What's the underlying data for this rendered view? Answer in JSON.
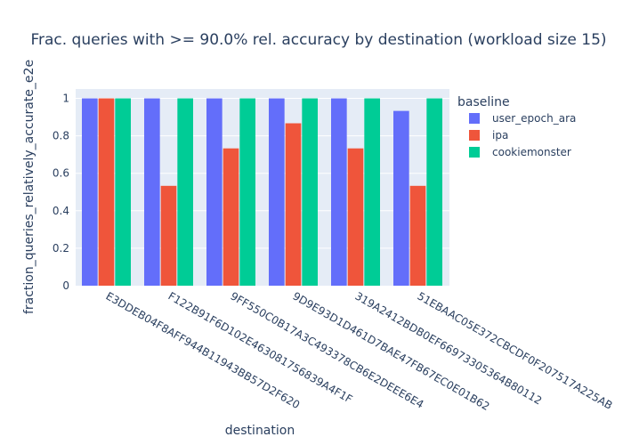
{
  "chart_data": {
    "type": "bar",
    "title": "Frac. queries with >= 90.0% rel. accuracy by destination (workload size 15)",
    "xlabel": "destination",
    "ylabel": "fraction_queries_relatively_accurate_e2e",
    "ylim": [
      0,
      1.05
    ],
    "yticks": [
      0,
      0.2,
      0.4,
      0.6,
      0.8,
      1
    ],
    "ytick_labels": [
      "0",
      "0.2",
      "0.4",
      "0.6",
      "0.8",
      "1"
    ],
    "grid": true,
    "legend_title": "baseline",
    "legend_position": "top-right",
    "categories": [
      "E3DDEB04F8AFF944B11943BB57D2F620",
      "F122B91F6D102E463081756839A4F1F",
      "9FF550C0B17A3C493378CB6E2DEEE6E4",
      "9D9E93D1D461D7BAE47FB67EC0E01B62",
      "319A2412BDB0EF66973305364B80112",
      "51EBAAC05E372CBCDF0F207517A225AB"
    ],
    "series": [
      {
        "name": "user_epoch_ara",
        "color": "#636efa",
        "values": [
          1,
          1,
          1,
          1,
          1,
          0.933
        ]
      },
      {
        "name": "ipa",
        "color": "#ef553b",
        "values": [
          1,
          0.533,
          0.733,
          0.867,
          0.733,
          0.533
        ]
      },
      {
        "name": "cookiemonster",
        "color": "#00cc96",
        "values": [
          1,
          1,
          1,
          1,
          1,
          1
        ]
      }
    ]
  }
}
